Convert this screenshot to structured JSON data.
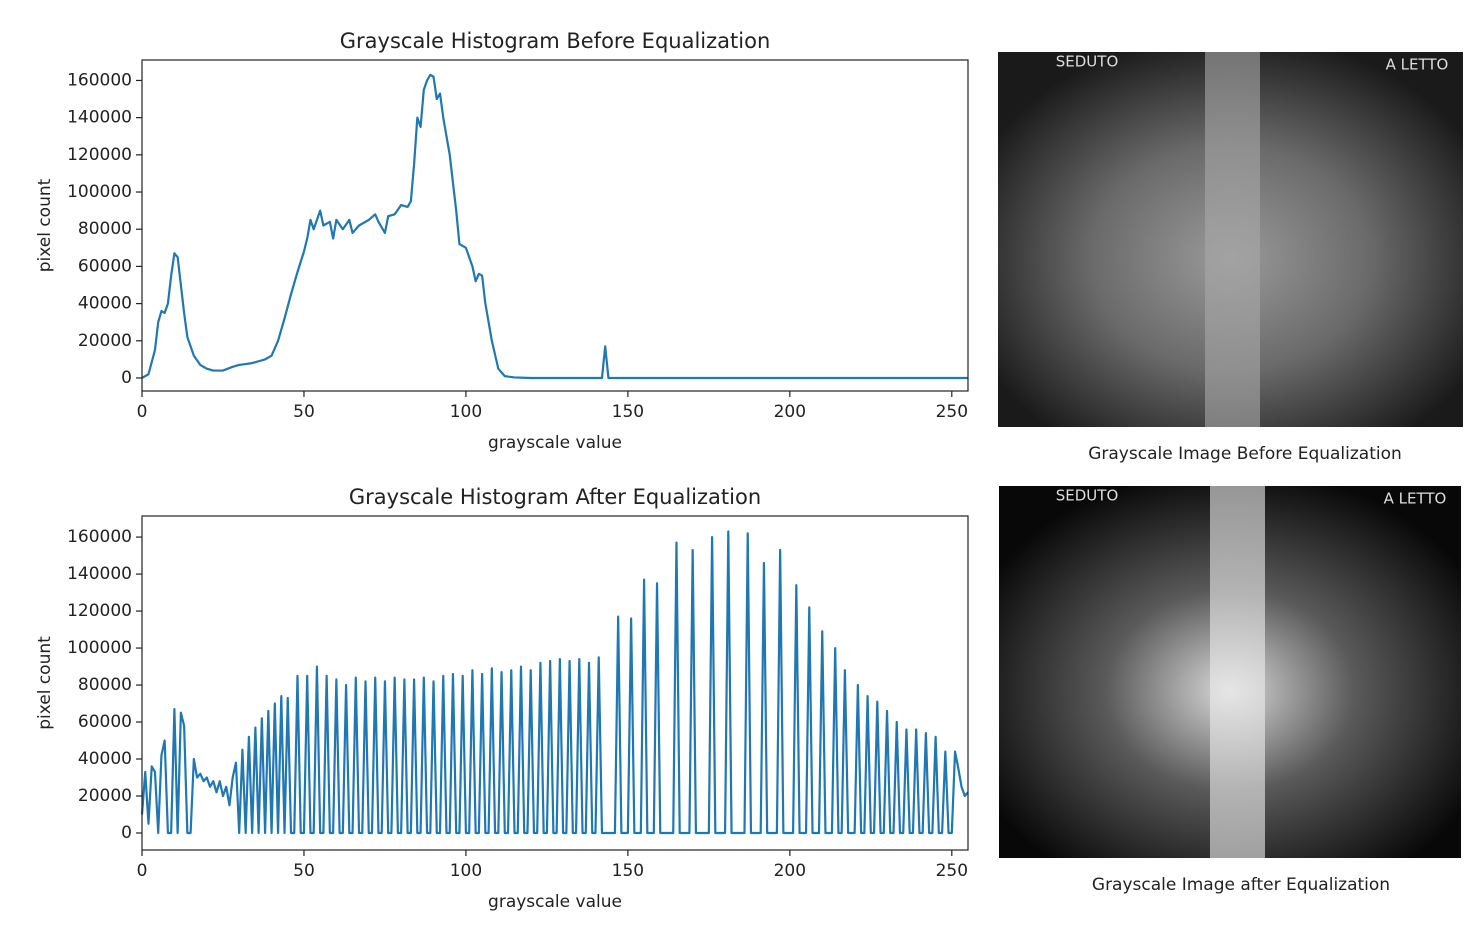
{
  "chart_data": [
    {
      "type": "line",
      "title": "Grayscale Histogram Before Equalization",
      "xlabel": "grayscale value",
      "ylabel": "pixel count",
      "x": [
        0,
        2,
        4,
        5,
        6,
        7,
        8,
        9,
        10,
        11,
        12,
        13,
        14,
        16,
        18,
        20,
        22,
        25,
        28,
        30,
        32,
        34,
        36,
        38,
        40,
        42,
        44,
        46,
        48,
        50,
        51,
        52,
        53,
        55,
        56,
        58,
        59,
        60,
        62,
        64,
        65,
        67,
        70,
        72,
        73,
        75,
        76,
        78,
        80,
        82,
        83,
        84,
        85,
        86,
        87,
        88,
        89,
        90,
        91,
        92,
        93,
        95,
        97,
        98,
        100,
        102,
        103,
        104,
        105,
        106,
        108,
        110,
        112,
        115,
        120,
        142,
        143,
        144,
        255
      ],
      "series": [
        {
          "color": "#1f77b4",
          "values": [
            0,
            2000,
            15000,
            30000,
            36000,
            35000,
            40000,
            55000,
            67000,
            65000,
            50000,
            35000,
            22000,
            12000,
            7000,
            5000,
            4000,
            4000,
            6000,
            7000,
            7500,
            8000,
            9000,
            10000,
            12000,
            20000,
            32000,
            45000,
            57000,
            68000,
            75000,
            85000,
            80000,
            90000,
            82000,
            84000,
            75000,
            85000,
            80000,
            85000,
            78000,
            82000,
            85000,
            88000,
            84000,
            78000,
            87000,
            88000,
            93000,
            92000,
            95000,
            115000,
            140000,
            135000,
            155000,
            160000,
            163000,
            162000,
            150000,
            153000,
            140000,
            120000,
            90000,
            72000,
            70000,
            60000,
            52000,
            56000,
            55000,
            40000,
            20000,
            5000,
            1000,
            300,
            0,
            0,
            17000,
            0,
            0
          ]
        }
      ],
      "xlim": [
        0,
        255
      ],
      "ylim": [
        -7000,
        171000
      ],
      "xticks": [
        0,
        50,
        100,
        150,
        200,
        250
      ],
      "yticks": [
        0,
        20000,
        40000,
        60000,
        80000,
        100000,
        120000,
        140000,
        160000
      ]
    },
    {
      "type": "line",
      "title": "Grayscale Histogram After Equalization",
      "xlabel": "grayscale value",
      "ylabel": "pixel count",
      "x": [
        0,
        1,
        2,
        3,
        4,
        5,
        6,
        7,
        8,
        9,
        10,
        11,
        12,
        13,
        14,
        15,
        16,
        17,
        18,
        19,
        20,
        21,
        22,
        23,
        24,
        25,
        26,
        27,
        28,
        29,
        30,
        31,
        32,
        33,
        34,
        35,
        36,
        37,
        38,
        39,
        40,
        41,
        42,
        43,
        44,
        45,
        46,
        47,
        48,
        49,
        50,
        51,
        52,
        53,
        54,
        55,
        56,
        57,
        58,
        59,
        60,
        61,
        62,
        63,
        64,
        65,
        66,
        67,
        68,
        69,
        70,
        71,
        72,
        73,
        74,
        75,
        76,
        77,
        78,
        79,
        80,
        81,
        82,
        83,
        84,
        85,
        86,
        87,
        88,
        89,
        90,
        91,
        92,
        93,
        94,
        95,
        96,
        97,
        98,
        99,
        100,
        101,
        102,
        103,
        104,
        105,
        106,
        107,
        108,
        109,
        110,
        111,
        112,
        113,
        114,
        115,
        116,
        117,
        118,
        119,
        120,
        121,
        122,
        123,
        124,
        125,
        126,
        127,
        128,
        129,
        130,
        131,
        132,
        133,
        134,
        135,
        136,
        137,
        138,
        139,
        140,
        141,
        142,
        143,
        146,
        147,
        148,
        150,
        151,
        152,
        154,
        155,
        156,
        158,
        159,
        160,
        164,
        165,
        166,
        169,
        170,
        171,
        175,
        176,
        177,
        180,
        181,
        182,
        186,
        187,
        188,
        191,
        192,
        193,
        196,
        197,
        198,
        201,
        202,
        203,
        205,
        206,
        207,
        209,
        210,
        211,
        213,
        214,
        215,
        216,
        217,
        218,
        219,
        220,
        221,
        222,
        223,
        224,
        225,
        226,
        227,
        228,
        229,
        230,
        231,
        232,
        233,
        234,
        235,
        236,
        237,
        238,
        239,
        240,
        241,
        242,
        243,
        244,
        245,
        246,
        247,
        248,
        249,
        250,
        251,
        252,
        253,
        254,
        255
      ],
      "series": [
        {
          "color": "#1f77b4",
          "values": [
            10000,
            33000,
            5000,
            36000,
            33000,
            0,
            42000,
            50000,
            0,
            0,
            67000,
            0,
            65000,
            58000,
            0,
            0,
            40000,
            30000,
            32000,
            28000,
            30000,
            25000,
            28000,
            22000,
            28000,
            20000,
            25000,
            15000,
            30000,
            38000,
            0,
            45000,
            0,
            52000,
            0,
            57000,
            0,
            62000,
            0,
            66000,
            0,
            70000,
            0,
            74000,
            0,
            73000,
            0,
            0,
            85000,
            0,
            0,
            85000,
            0,
            0,
            90000,
            0,
            0,
            85000,
            0,
            0,
            83000,
            0,
            0,
            80000,
            0,
            0,
            84000,
            0,
            0,
            82000,
            0,
            0,
            84000,
            0,
            0,
            82000,
            0,
            0,
            84000,
            0,
            0,
            83000,
            0,
            0,
            83000,
            0,
            0,
            84000,
            0,
            0,
            82000,
            0,
            0,
            85000,
            0,
            0,
            86000,
            0,
            0,
            85000,
            0,
            0,
            88000,
            0,
            0,
            86000,
            0,
            0,
            89000,
            0,
            0,
            87000,
            0,
            0,
            88000,
            0,
            0,
            90000,
            0,
            0,
            88000,
            0,
            0,
            92000,
            0,
            0,
            93000,
            0,
            0,
            94000,
            0,
            0,
            93000,
            0,
            0,
            94000,
            0,
            0,
            92000,
            0,
            0,
            95000,
            0,
            0,
            0,
            117000,
            0,
            0,
            116000,
            0,
            0,
            137000,
            0,
            0,
            135000,
            0,
            0,
            157000,
            0,
            0,
            153000,
            0,
            0,
            160000,
            0,
            0,
            163000,
            0,
            0,
            162000,
            0,
            0,
            146000,
            0,
            0,
            153000,
            0,
            0,
            134000,
            0,
            0,
            122000,
            0,
            0,
            109000,
            0,
            0,
            100000,
            0,
            0,
            88000,
            0,
            0,
            0,
            80000,
            0,
            0,
            74000,
            0,
            0,
            71000,
            0,
            0,
            66000,
            0,
            0,
            60000,
            0,
            0,
            56000,
            0,
            0,
            56000,
            0,
            0,
            54000,
            0,
            0,
            52000,
            0,
            0,
            44000,
            0,
            0,
            44000,
            35000,
            25000,
            20000,
            22000
          ]
        }
      ],
      "xlim": [
        0,
        255
      ],
      "ylim": [
        -9200,
        171400
      ],
      "xticks": [
        0,
        50,
        100,
        150,
        200,
        250
      ],
      "yticks": [
        0,
        20000,
        40000,
        60000,
        80000,
        100000,
        120000,
        140000,
        160000
      ]
    }
  ],
  "images": [
    {
      "labels": [
        "SEDUTO",
        "A LETTO"
      ],
      "caption": "Grayscale Image Before Equalization"
    },
    {
      "labels": [
        "SEDUTO",
        "A LETTO"
      ],
      "caption": "Grayscale Image after Equalization"
    }
  ]
}
